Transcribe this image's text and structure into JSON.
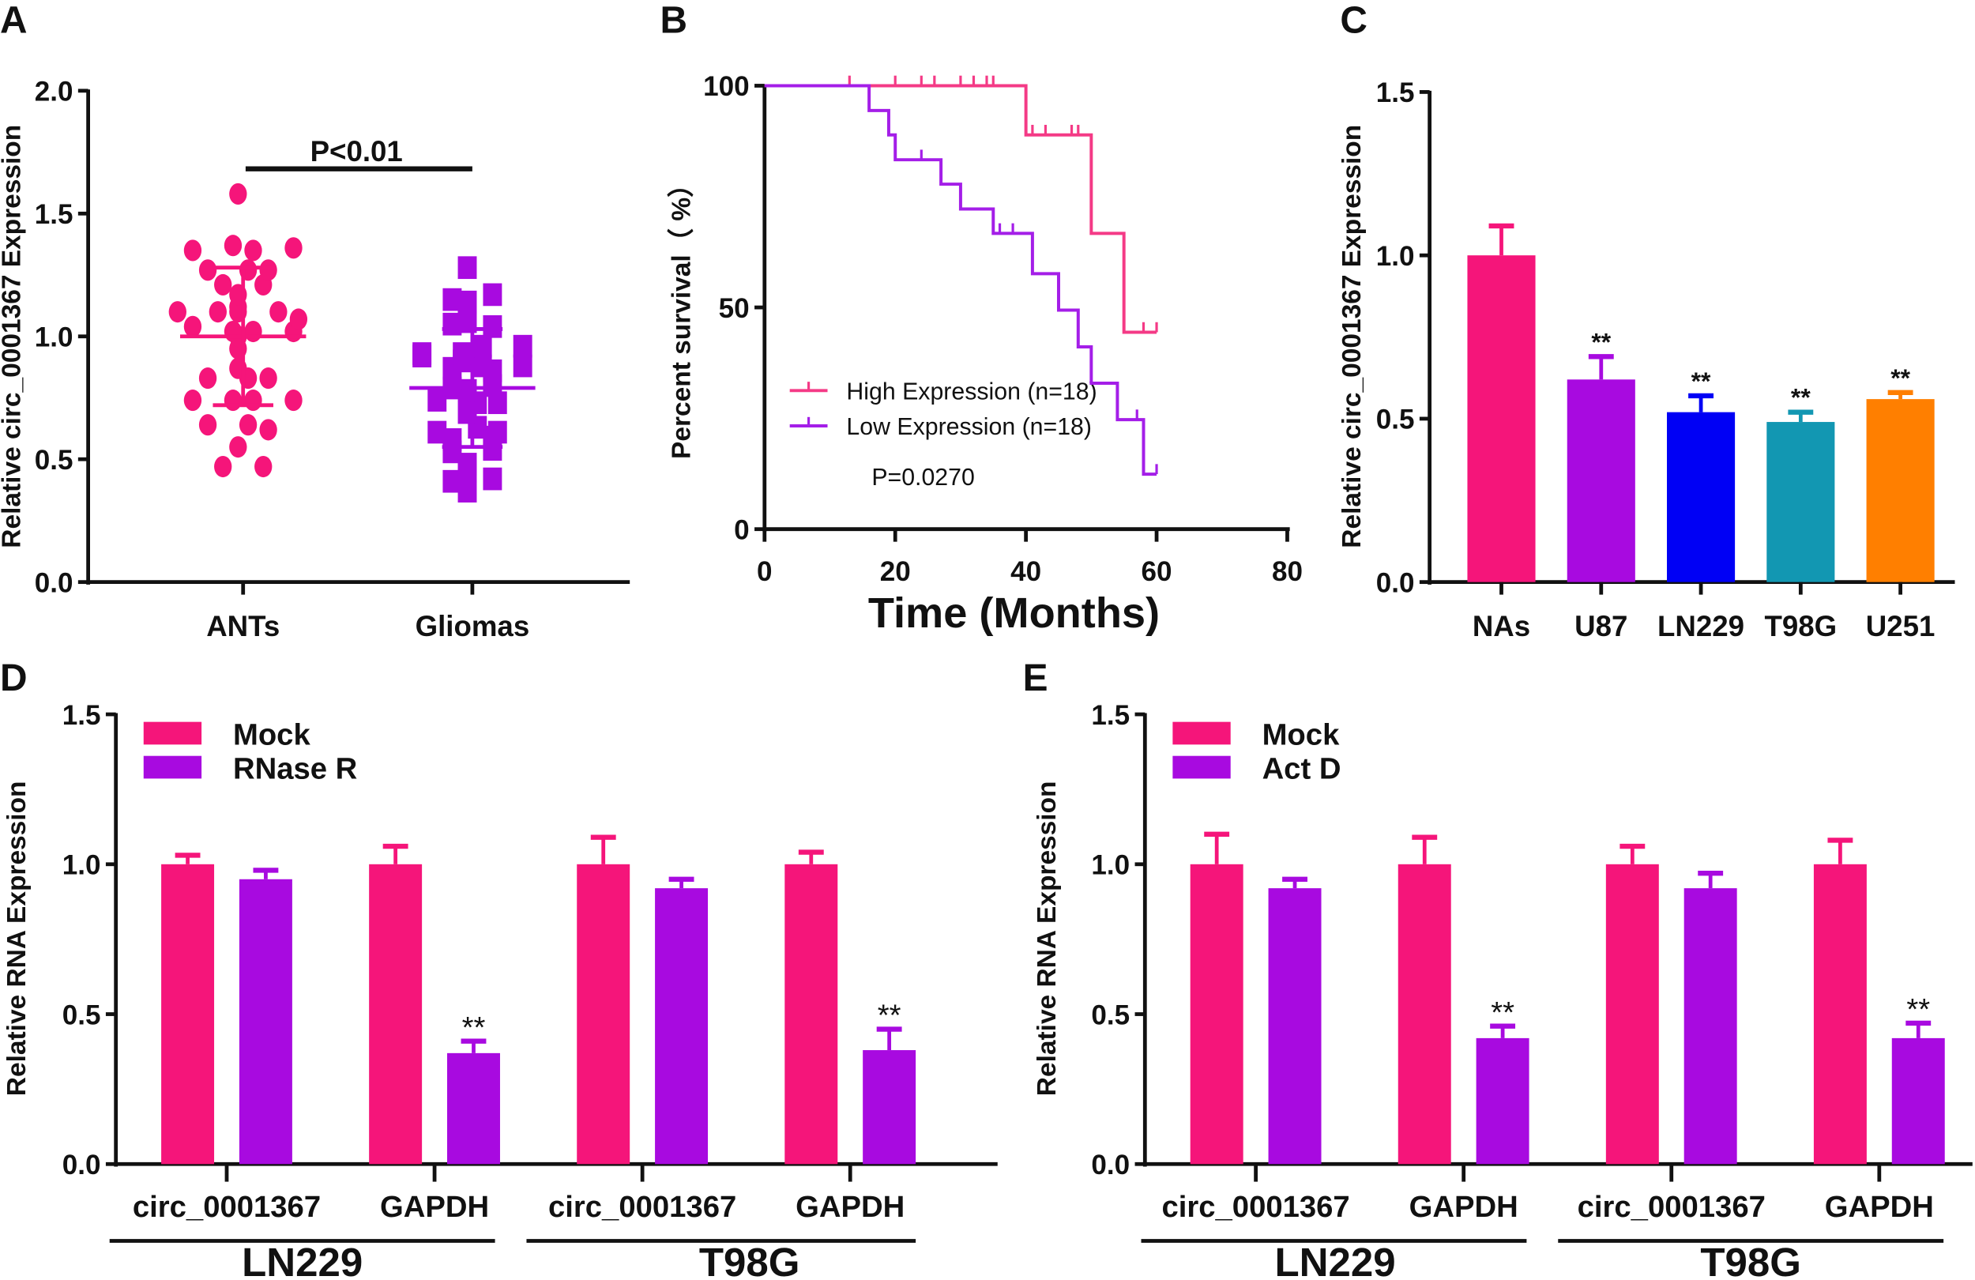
{
  "chart_data": [
    {
      "panel": "A",
      "type": "scatter",
      "ylabel": "Relative circ_0001367 Expression",
      "ylim": [
        0,
        2.0
      ],
      "yticks": [
        "0.0",
        "0.5",
        "1.0",
        "1.5",
        "2.0"
      ],
      "categories": [
        "ANTs",
        "Gliomas"
      ],
      "annotation": "P<0.01",
      "series": [
        {
          "name": "ANTs",
          "marker": "circle",
          "color": "#f5157a",
          "mean": 1.0,
          "sd_low": 0.72,
          "sd_high": 1.28,
          "values": [
            1.58,
            1.35,
            1.37,
            1.35,
            1.36,
            1.27,
            1.27,
            1.27,
            1.21,
            1.21,
            1.17,
            1.12,
            1.1,
            1.1,
            1.1,
            1.1,
            1.07,
            1.04,
            1.02,
            1.02,
            1.02,
            1.0,
            0.95,
            0.87,
            0.83,
            0.83,
            0.83,
            0.74,
            0.74,
            0.74,
            0.74,
            0.64,
            0.64,
            0.62,
            0.55,
            0.47,
            0.47
          ]
        },
        {
          "name": "Gliomas",
          "marker": "square",
          "color": "#a80ae0",
          "mean": 0.79,
          "sd_low": 0.55,
          "sd_high": 1.03,
          "values": [
            1.28,
            1.14,
            1.15,
            1.17,
            1.05,
            1.06,
            1.04,
            0.93,
            0.93,
            0.96,
            0.96,
            0.92,
            0.9,
            0.88,
            0.87,
            0.88,
            0.86,
            0.79,
            0.8,
            0.78,
            0.74,
            0.73,
            0.73,
            0.69,
            0.61,
            0.63,
            0.61,
            0.58,
            0.59,
            0.53,
            0.54,
            0.48,
            0.45,
            0.41,
            0.42,
            0.37
          ]
        }
      ]
    },
    {
      "panel": "B",
      "type": "line",
      "xlabel": "Time (Months)",
      "ylabel": "Percent survival（ %）",
      "xlim": [
        0,
        80
      ],
      "ylim": [
        0,
        100
      ],
      "xticks": [
        "0",
        "20",
        "40",
        "60",
        "80"
      ],
      "yticks": [
        "0",
        "50",
        "100"
      ],
      "annotation": "P=0.0270",
      "series": [
        {
          "name": "High Expression (n=18)",
          "color": "#f43a86",
          "steps": [
            [
              0,
              100
            ],
            [
              40,
              88.9
            ],
            [
              50,
              66.7
            ],
            [
              55,
              44.4
            ],
            [
              60,
              44.4
            ]
          ],
          "censored": [
            13,
            20,
            24,
            26,
            30,
            32,
            34,
            35,
            41,
            43,
            47,
            48,
            58,
            60
          ]
        },
        {
          "name": "Low Expression (n=18)",
          "color": "#a41ee8",
          "steps": [
            [
              0,
              100
            ],
            [
              16,
              94.4
            ],
            [
              19,
              88.9
            ],
            [
              20,
              83.3
            ],
            [
              27,
              77.8
            ],
            [
              30,
              72.2
            ],
            [
              35,
              66.7
            ],
            [
              41,
              57.6
            ],
            [
              45,
              49.4
            ],
            [
              48,
              41.1
            ],
            [
              50,
              32.9
            ],
            [
              54,
              24.7
            ],
            [
              58,
              12.4
            ],
            [
              60,
              12.4
            ]
          ],
          "censored": [
            24,
            36,
            38,
            57,
            60
          ]
        }
      ]
    },
    {
      "panel": "C",
      "type": "bar",
      "ylabel": "Relative circ_0001367 Expression",
      "ylim": [
        0,
        1.5
      ],
      "yticks": [
        "0.0",
        "0.5",
        "1.0",
        "1.5"
      ],
      "categories": [
        "NAs",
        "U87",
        "LN229",
        "T98G",
        "U251"
      ],
      "values": [
        1.0,
        0.62,
        0.52,
        0.49,
        0.56
      ],
      "errors": [
        0.09,
        0.07,
        0.05,
        0.03,
        0.02
      ],
      "colors": [
        "#f5157a",
        "#a80ae0",
        "#0000f5",
        "#1297b2",
        "#ff7f00"
      ],
      "significance": [
        "",
        "**",
        "**",
        "**",
        "**"
      ]
    },
    {
      "panel": "D",
      "type": "bar",
      "ylabel": "Relative RNA Expression",
      "ylim": [
        0,
        1.5
      ],
      "yticks": [
        "0.0",
        "0.5",
        "1.0",
        "1.5"
      ],
      "categories": [
        "circ_0001367",
        "GAPDH",
        "circ_0001367",
        "GAPDH"
      ],
      "groups": [
        "LN229",
        "T98G"
      ],
      "series": [
        {
          "name": "Mock",
          "color": "#f5157a",
          "values": [
            1.0,
            1.0,
            1.0,
            1.0
          ],
          "errors": [
            0.03,
            0.06,
            0.09,
            0.04
          ],
          "significance": [
            "",
            "",
            "",
            ""
          ]
        },
        {
          "name": "RNase R",
          "color": "#a80ae0",
          "values": [
            0.95,
            0.37,
            0.92,
            0.38
          ],
          "errors": [
            0.03,
            0.04,
            0.03,
            0.07
          ],
          "significance": [
            "",
            "**",
            "",
            "**"
          ]
        }
      ]
    },
    {
      "panel": "E",
      "type": "bar",
      "ylabel": "Relative RNA Expression",
      "ylim": [
        0,
        1.5
      ],
      "yticks": [
        "0.0",
        "0.5",
        "1.0",
        "1.5"
      ],
      "categories": [
        "circ_0001367",
        "GAPDH",
        "circ_0001367",
        "GAPDH"
      ],
      "groups": [
        "LN229",
        "T98G"
      ],
      "series": [
        {
          "name": "Mock",
          "color": "#f5157a",
          "values": [
            1.0,
            1.0,
            1.0,
            1.0
          ],
          "errors": [
            0.1,
            0.09,
            0.06,
            0.08
          ],
          "significance": [
            "",
            "",
            "",
            ""
          ]
        },
        {
          "name": "Act D",
          "color": "#a80ae0",
          "values": [
            0.92,
            0.42,
            0.92,
            0.42
          ],
          "errors": [
            0.03,
            0.04,
            0.05,
            0.05
          ],
          "significance": [
            "",
            "**",
            "",
            "**"
          ]
        }
      ]
    }
  ]
}
